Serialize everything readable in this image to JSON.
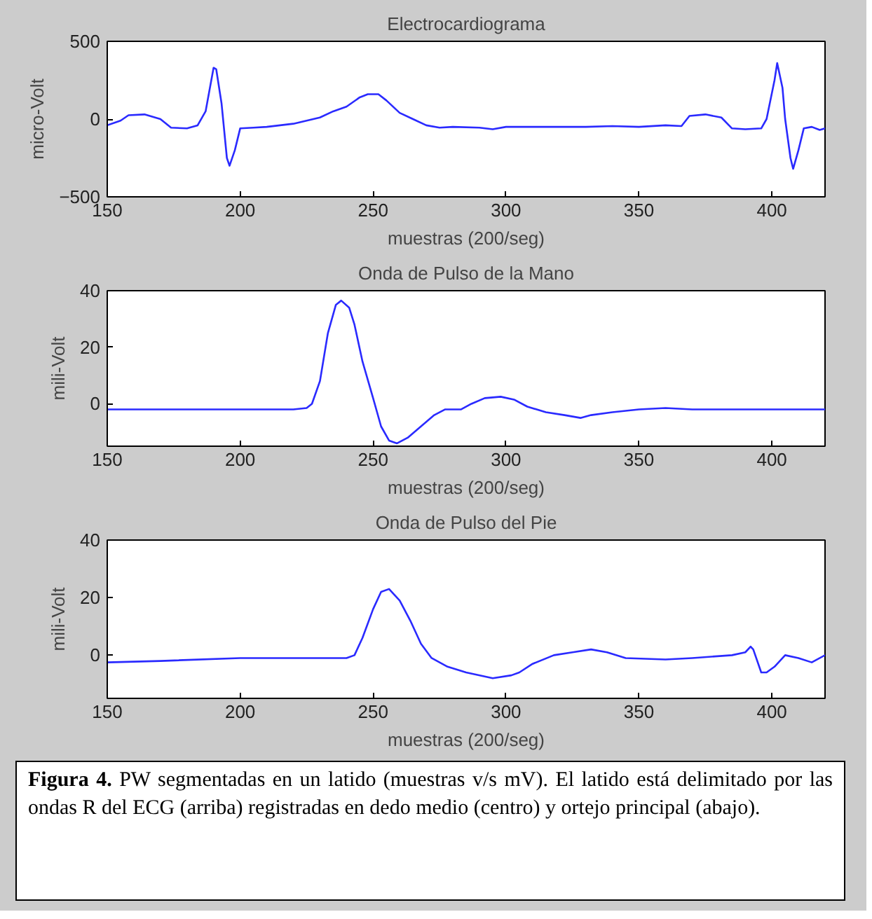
{
  "chart_data": [
    {
      "type": "line",
      "title": "Electrocardiograma",
      "xlabel": "muestras (200/seg)",
      "ylabel": "micro-Volt",
      "xlim": [
        150,
        420
      ],
      "xticks": [
        150,
        200,
        250,
        300,
        350,
        400
      ],
      "ylim": [
        -500,
        500
      ],
      "yticks": [
        -500,
        0,
        500
      ],
      "grid": false,
      "marker": "none",
      "line_style": "solid",
      "series": [
        {
          "color": "#2a2aff",
          "x": [
            150,
            155,
            158,
            164,
            170,
            174,
            180,
            184,
            187,
            190,
            191,
            193,
            195,
            196,
            198,
            200,
            205,
            210,
            215,
            220,
            225,
            230,
            235,
            240,
            245,
            248,
            252,
            255,
            260,
            265,
            270,
            275,
            280,
            290,
            295,
            300,
            310,
            320,
            330,
            340,
            350,
            360,
            366,
            369,
            375,
            381,
            385,
            390,
            396,
            398,
            401,
            402,
            404,
            405,
            407,
            408,
            410,
            412,
            415,
            418,
            420
          ],
          "values": [
            -40,
            -10,
            25,
            30,
            0,
            -55,
            -60,
            -40,
            50,
            330,
            320,
            100,
            -250,
            -300,
            -200,
            -60,
            -55,
            -50,
            -40,
            -30,
            -10,
            10,
            50,
            80,
            140,
            160,
            160,
            120,
            40,
            0,
            -40,
            -55,
            -50,
            -55,
            -65,
            -50,
            -50,
            -50,
            -50,
            -45,
            -50,
            -40,
            -45,
            20,
            30,
            10,
            -60,
            -65,
            -60,
            0,
            250,
            360,
            200,
            0,
            -250,
            -320,
            -200,
            -60,
            -50,
            -70,
            -60
          ]
        }
      ]
    },
    {
      "type": "line",
      "title": "Onda de Pulso de la Mano",
      "xlabel": "muestras (200/seg)",
      "ylabel": "mili-Volt",
      "xlim": [
        150,
        420
      ],
      "xticks": [
        150,
        200,
        250,
        300,
        350,
        400
      ],
      "ylim": [
        -15,
        40
      ],
      "yticks": [
        0,
        20,
        40
      ],
      "grid": false,
      "marker": "none",
      "line_style": "solid",
      "series": [
        {
          "color": "#2a2aff",
          "x": [
            150,
            200,
            220,
            225,
            227,
            230,
            233,
            236,
            238,
            241,
            243,
            246,
            250,
            253,
            256,
            259,
            263,
            268,
            273,
            277,
            283,
            287,
            292,
            298,
            303,
            308,
            315,
            322,
            328,
            332,
            340,
            350,
            360,
            370,
            380,
            400,
            420
          ],
          "values": [
            -2,
            -2,
            -2,
            -1.5,
            0,
            8,
            25,
            35,
            36.5,
            34,
            28,
            15,
            2,
            -8,
            -13,
            -14,
            -12,
            -8,
            -4,
            -2,
            -2,
            0,
            2,
            2.5,
            1.5,
            -1,
            -3,
            -4,
            -5,
            -4,
            -3,
            -2,
            -1.5,
            -2,
            -2,
            -2,
            -2
          ]
        }
      ]
    },
    {
      "type": "line",
      "title": "Onda de Pulso del Pie",
      "xlabel": "muestras (200/seg)",
      "ylabel": "mili-Volt",
      "xlim": [
        150,
        420
      ],
      "xticks": [
        150,
        200,
        250,
        300,
        350,
        400
      ],
      "ylim": [
        -15,
        40
      ],
      "yticks": [
        0,
        20,
        40
      ],
      "grid": false,
      "marker": "none",
      "line_style": "solid",
      "series": [
        {
          "color": "#2a2aff",
          "x": [
            150,
            170,
            200,
            230,
            240,
            243,
            246,
            250,
            253,
            256,
            260,
            264,
            268,
            272,
            278,
            285,
            295,
            302,
            305,
            310,
            318,
            325,
            332,
            338,
            345,
            360,
            370,
            385,
            390,
            392,
            393,
            396,
            398,
            401,
            405,
            410,
            415,
            420
          ],
          "values": [
            -2.5,
            -2,
            -1,
            -1,
            -1,
            0,
            6,
            16,
            22,
            23,
            19,
            12,
            4,
            -1,
            -4,
            -6,
            -8,
            -7,
            -6,
            -3,
            0,
            1,
            2,
            1,
            -1,
            -1.5,
            -1,
            0,
            1,
            3,
            2,
            -6,
            -6,
            -4,
            0,
            -1,
            -2.5,
            0
          ]
        }
      ],
      "annotations": [
        "Figura 4.",
        "PW segmentadas en un latido (muestras v/s mV). El latido está delimitado por las ondas R del ECG (arriba) registradas en dedo medio (centro) y ortejo principal (abajo)."
      ]
    }
  ]
}
